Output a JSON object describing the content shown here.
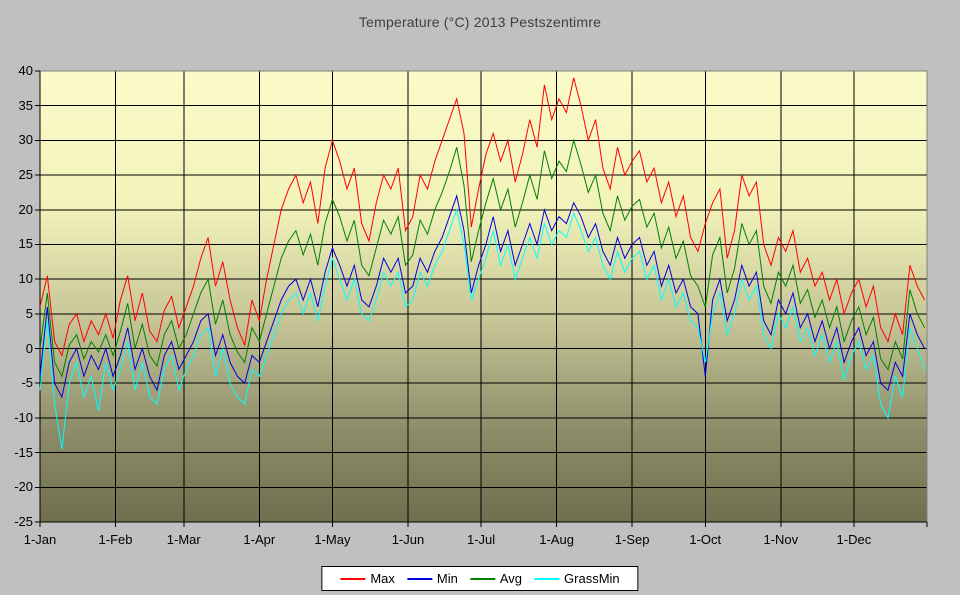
{
  "title": "Temperature (°C) 2013 Pestszentimre",
  "colors": {
    "page_bg": "#c0c0c0",
    "plot_border": "#808080",
    "gridline": "#000000",
    "axis": "#000000",
    "legend_bg": "#ffffff",
    "title_text": "#3f3f3f",
    "label_text": "#000000"
  },
  "chart_data": {
    "type": "line",
    "title": "Temperature (°C) 2013 Pestszentimre",
    "xlabel": "",
    "ylabel": "",
    "ylim": [
      -25,
      40
    ],
    "y_tick_step": 5,
    "y_tick_labels": [
      "40",
      "35",
      "30",
      "25",
      "20",
      "15",
      "10",
      "5",
      "0",
      "-5",
      "-10",
      "-15",
      "-20",
      "-25"
    ],
    "x_tick_labels": [
      "1-Jan",
      "1-Feb",
      "1-Mar",
      "1-Apr",
      "1-May",
      "1-Jun",
      "1-Jul",
      "1-Aug",
      "1-Sep",
      "1-Oct",
      "1-Nov",
      "1-Dec"
    ],
    "month_start_days": [
      0,
      31,
      59,
      90,
      120,
      151,
      181,
      212,
      243,
      273,
      304,
      334
    ],
    "days_in_year": 364,
    "sample_interval_days": 3,
    "grid": true,
    "legend_position": "bottom",
    "plot_bg_gradient_stops": [
      {
        "offset": 0,
        "color": "#fbfbc9"
      },
      {
        "offset": 0.3,
        "color": "#f2f2ba"
      },
      {
        "offset": 0.55,
        "color": "#c6c697"
      },
      {
        "offset": 0.8,
        "color": "#8c8c69"
      },
      {
        "offset": 1,
        "color": "#70704e"
      }
    ],
    "series": [
      {
        "name": "Max",
        "color": "#ff0000",
        "values": [
          6,
          10.5,
          1,
          -1,
          3.5,
          5,
          1,
          4,
          2,
          5,
          1.5,
          7,
          10.5,
          4,
          8,
          2.5,
          1,
          5.5,
          7.5,
          3,
          6,
          9,
          13,
          16,
          9,
          12.5,
          7,
          3,
          0.5,
          7,
          4,
          10,
          15,
          20,
          23,
          25,
          21,
          24,
          18,
          26,
          30,
          27,
          23,
          26,
          18,
          15.5,
          21,
          25,
          23,
          26,
          17,
          19,
          25,
          23,
          27,
          30,
          33,
          36,
          31,
          17.5,
          23,
          28,
          31,
          27,
          30,
          24,
          28,
          33,
          29,
          38,
          33,
          36,
          34,
          39,
          35,
          30,
          33,
          26,
          23,
          29,
          25,
          27,
          28.5,
          24,
          26,
          21,
          24,
          19,
          22,
          16,
          14,
          18,
          21,
          23,
          13,
          17,
          25,
          22,
          24,
          15,
          12,
          16,
          14,
          17,
          11,
          13,
          9,
          11,
          7,
          10,
          5,
          8,
          10,
          6,
          9,
          3,
          1,
          5,
          2,
          12,
          9,
          7
        ]
      },
      {
        "name": "Min",
        "color": "#0000dd",
        "values": [
          -4,
          6,
          -5,
          -7,
          -2,
          0,
          -4,
          -1,
          -3,
          0,
          -4,
          -1,
          3,
          -3,
          0,
          -4,
          -6,
          -1,
          1,
          -3,
          -1,
          1,
          4,
          5,
          -1,
          2,
          -2,
          -4,
          -5,
          -1,
          -2,
          1,
          4,
          7,
          9,
          10,
          7,
          10,
          6,
          11,
          14.5,
          12,
          9,
          12,
          7,
          6,
          9,
          13,
          11,
          13,
          8,
          9,
          13,
          11,
          14,
          16,
          19,
          22,
          17,
          8,
          12,
          15,
          19,
          14,
          17,
          12,
          15,
          18,
          15,
          20,
          17,
          19,
          18,
          21,
          19,
          16,
          18,
          14,
          12,
          16,
          13,
          15,
          16,
          12,
          14,
          9,
          12,
          8,
          10,
          6,
          5,
          -4,
          7,
          10,
          4,
          7,
          12,
          9,
          11,
          4,
          2,
          7,
          5,
          8,
          3,
          5,
          1,
          4,
          0,
          3,
          -2,
          1,
          3,
          -1,
          1,
          -5,
          -6,
          -2,
          -4,
          5,
          2,
          0
        ]
      },
      {
        "name": "Avg",
        "color": "#008000",
        "values": [
          0,
          8,
          -2,
          -4,
          0.5,
          2,
          -1.5,
          1,
          -0.5,
          2,
          -1,
          2.5,
          6.5,
          0,
          3.5,
          -1,
          -2.5,
          2,
          4,
          0,
          2,
          5,
          8,
          10,
          3.5,
          7,
          2,
          -0.5,
          -2,
          3,
          1,
          5,
          9,
          13,
          15.5,
          17,
          13.5,
          16.5,
          12,
          18,
          21.5,
          19,
          15.5,
          18.5,
          12,
          10.5,
          14.5,
          18.5,
          16.5,
          19,
          12,
          13.5,
          18.5,
          16.5,
          20,
          22.5,
          25.5,
          29,
          23.5,
          12.5,
          17,
          21,
          24.5,
          20,
          23,
          17.5,
          21,
          25,
          21.5,
          28.5,
          24.5,
          27,
          25.5,
          30,
          26.5,
          22.5,
          25,
          19.5,
          17,
          22,
          18.5,
          20.5,
          21.5,
          17.5,
          19.5,
          14.5,
          17.5,
          13,
          15.5,
          10.5,
          9,
          6,
          13.5,
          16,
          8,
          11.5,
          18,
          15,
          17,
          9,
          6.5,
          11,
          9,
          12,
          6.5,
          8.5,
          4.5,
          7,
          3,
          6,
          1,
          4,
          6,
          2,
          4.5,
          -1.5,
          -3,
          1,
          -1.5,
          8.5,
          5,
          3
        ]
      },
      {
        "name": "GrassMin",
        "color": "#00ffff",
        "values": [
          -6,
          4,
          -8,
          -14.5,
          -5,
          -2,
          -7,
          -4,
          -9,
          -2,
          -6,
          -3,
          1,
          -6,
          -2,
          -7,
          -8,
          -3,
          -1,
          -6,
          -3,
          -1,
          2,
          3,
          -4,
          0,
          -5,
          -7,
          -8,
          -3,
          -4,
          -1,
          2,
          5,
          7,
          8,
          5,
          8,
          4,
          9,
          13,
          10,
          7,
          10,
          5,
          4,
          7,
          11,
          9,
          11,
          6,
          7,
          11,
          9,
          12,
          14,
          17,
          20,
          15,
          7,
          10,
          13,
          17,
          12,
          15,
          10,
          13,
          16,
          13,
          18,
          15,
          17,
          16,
          19.5,
          17,
          14,
          16,
          12,
          10,
          14,
          11,
          13,
          14,
          10,
          12,
          7,
          10,
          6,
          8,
          4,
          3,
          -2,
          5,
          8,
          2,
          5,
          10,
          7,
          9,
          2,
          0,
          5,
          3,
          6,
          1,
          3,
          -1,
          2,
          -2,
          1,
          -4.5,
          -1,
          1,
          -3,
          -1,
          -8,
          -10,
          -4,
          -7,
          3,
          0,
          -3
        ]
      }
    ]
  }
}
